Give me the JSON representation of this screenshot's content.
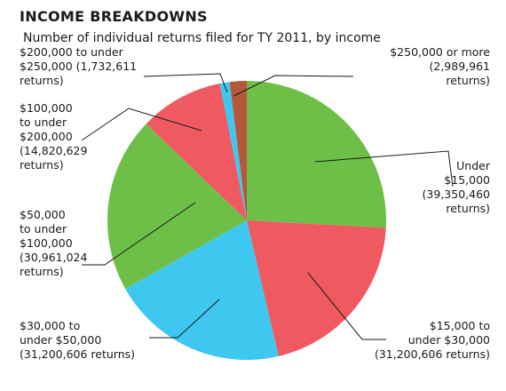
{
  "header": {
    "title": "INCOME BREAKDOWNS",
    "subtitle": "Number of individual returns filed for TY 2011, by income"
  },
  "chart_data": {
    "type": "pie",
    "title": "INCOME BREAKDOWNS",
    "subtitle": "Number of individual returns filed for TY 2011, by income",
    "slices": [
      {
        "name": "Under $15,000",
        "value": 39350460,
        "color": "#6ebf47",
        "label_lines": [
          "Under",
          "$15,000",
          "(39,350,460",
          "returns)"
        ]
      },
      {
        "name": "$15,000 to under $30,000",
        "value": 31200606,
        "color": "#ef5a60",
        "label_lines": [
          "$15,000 to",
          "under $30,000",
          "(31,200,606 returns)"
        ]
      },
      {
        "name": "$30,000 to under $50,000",
        "value": 31200606,
        "color": "#3ec8f0",
        "label_lines": [
          "$30,000 to",
          "under $50,000",
          "(31,200,606 returns)"
        ]
      },
      {
        "name": "$50,000 to under $100,000",
        "value": 30961024,
        "color": "#6ebf47",
        "label_lines": [
          "$50,000",
          "to under",
          "$100,000",
          "(30,961,024",
          "returns)"
        ]
      },
      {
        "name": "$100,000 to under $200,000",
        "value": 14820629,
        "color": "#ef5a60",
        "label_lines": [
          "$100,000",
          "to under",
          "$200,000",
          "(14,820,629",
          "returns)"
        ]
      },
      {
        "name": "$200,000 to under $250,000",
        "value": 1732611,
        "color": "#3ec8f0",
        "label_lines": [
          "$200,000  to under",
          "$250,000 (1,732,611",
          "returns)"
        ]
      },
      {
        "name": "$250,000 or more",
        "value": 2989961,
        "color": "#b5573a",
        "label_lines": [
          "$250,000 or more",
          "(2,989,961",
          "returns)"
        ]
      }
    ]
  }
}
